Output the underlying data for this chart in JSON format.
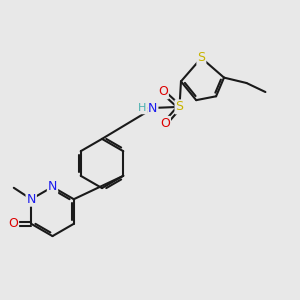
{
  "background_color": "#e8e8e8",
  "fig_size": [
    3.0,
    3.0
  ],
  "dpi": 100,
  "bond_color": "#1a1a1a",
  "atom_colors": {
    "S": "#c8b400",
    "N": "#1a1aee",
    "O": "#dd0000",
    "H": "#4ab0b0",
    "C": "#1a1a1a"
  }
}
